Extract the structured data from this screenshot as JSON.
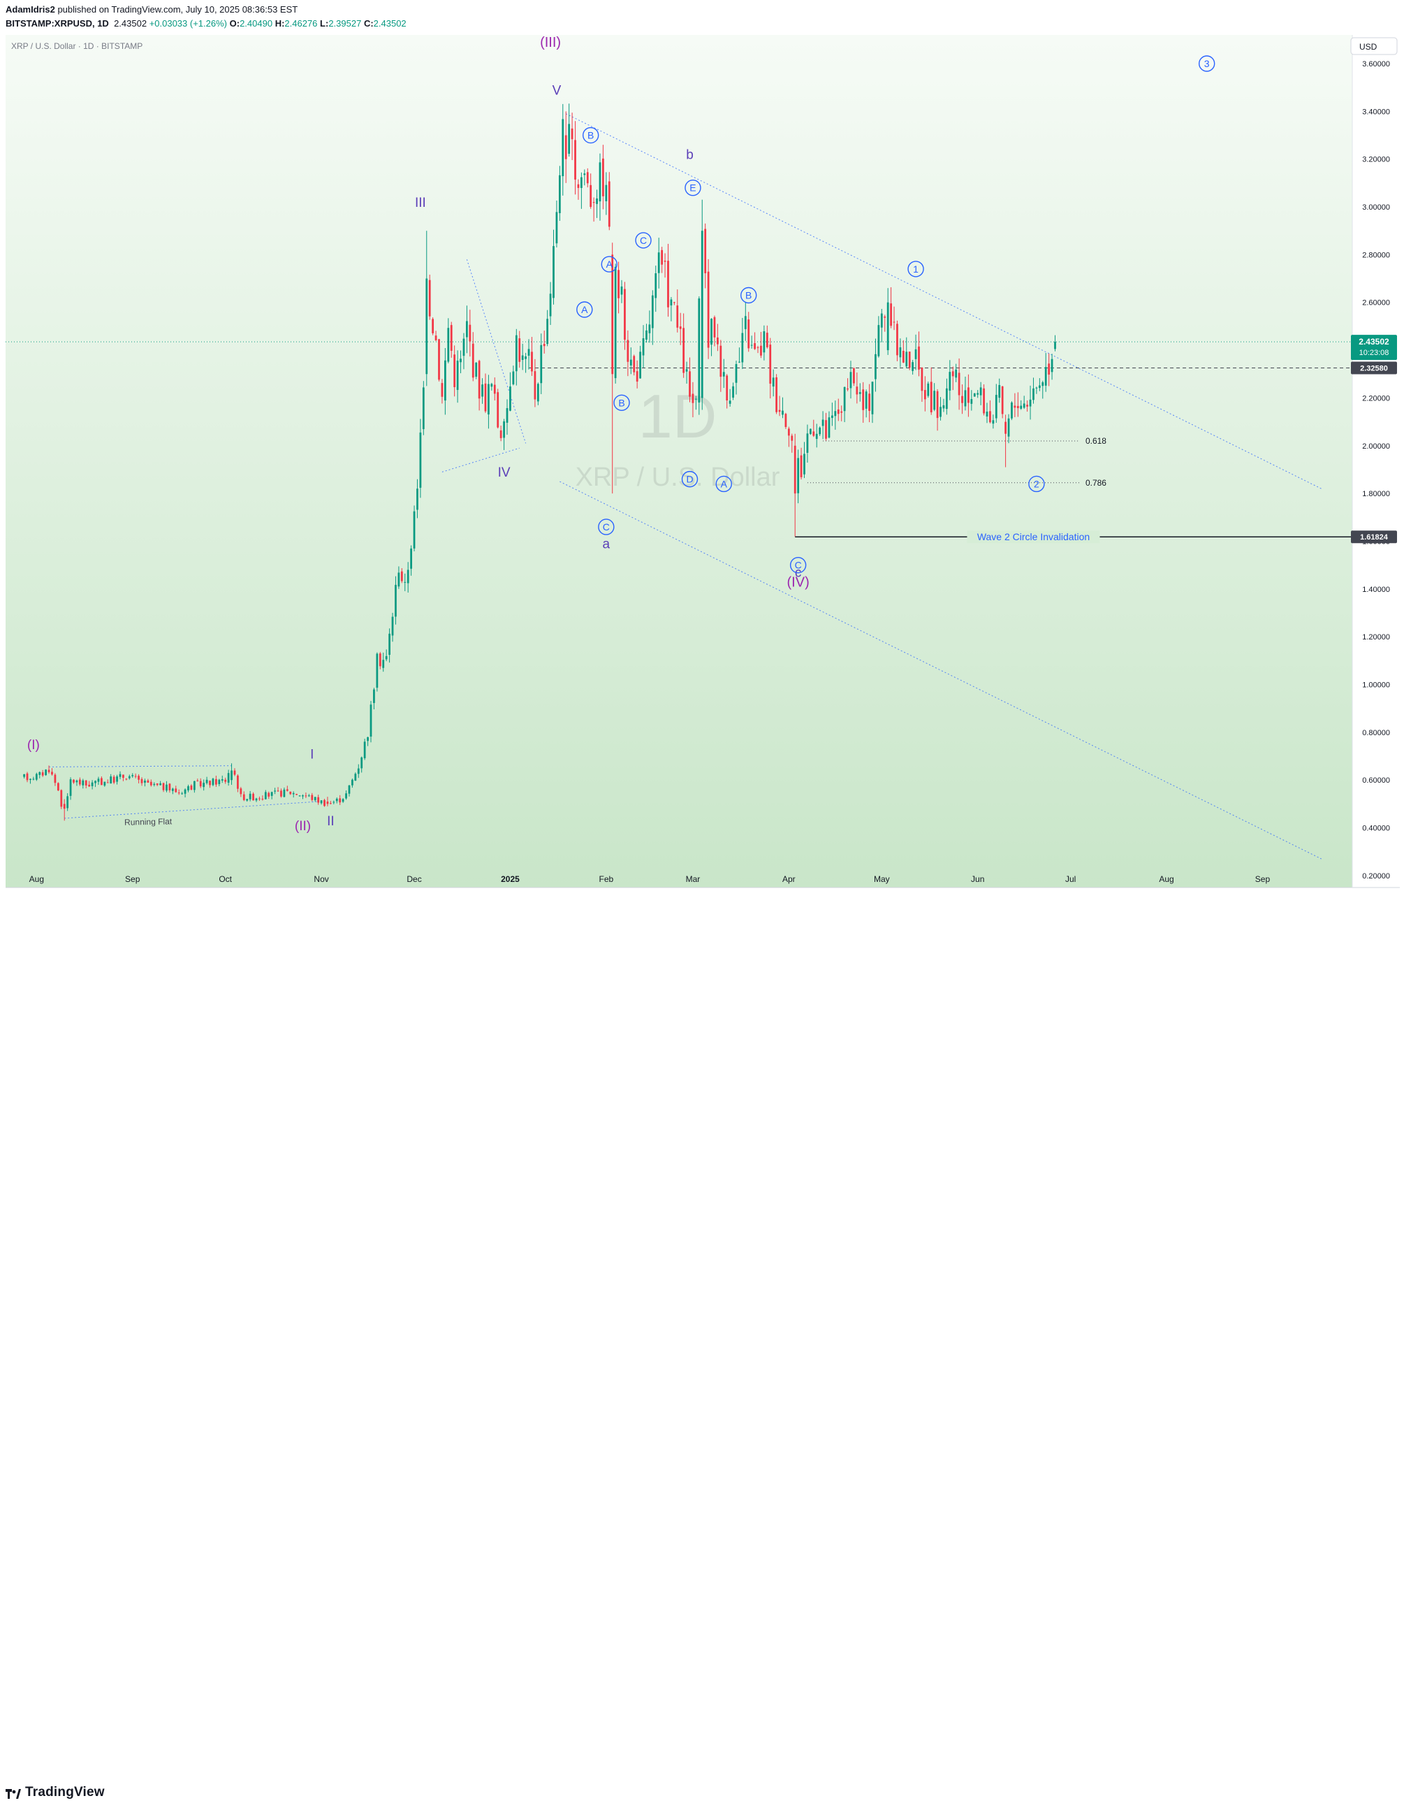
{
  "header": {
    "author": "AdamIdris2",
    "published_text": "published on TradingView.com, July 10, 2025 08:36:53 EST",
    "symbol_line": "BITSTAMP:XRPUSD, 1D",
    "last": "2.43502",
    "change": "+0.03033 (+1.26%)",
    "open_label": "O:",
    "open": "2.40490",
    "high_label": "H:",
    "high": "2.46276",
    "low_label": "L:",
    "low": "2.39527",
    "close_label": "C:",
    "close": "2.43502"
  },
  "chart_data": {
    "type": "candlestick",
    "title": "XRP / U.S. Dollar · 1D · BITSTAMP",
    "watermark_interval": "1D",
    "watermark_name": "XRP / U.S. Dollar",
    "currency": "USD",
    "ylim": [
      0.15,
      3.72
    ],
    "y_ticks": [
      "3.60000",
      "3.40000",
      "3.20000",
      "3.00000",
      "2.80000",
      "2.60000",
      "2.40000",
      "2.20000",
      "2.00000",
      "1.80000",
      "1.60000",
      "1.40000",
      "1.20000",
      "1.00000",
      "0.80000",
      "0.60000",
      "0.40000",
      "0.20000"
    ],
    "x_ticks": [
      {
        "label": "Aug",
        "day": 4
      },
      {
        "label": "Sep",
        "day": 35
      },
      {
        "label": "Oct",
        "day": 65
      },
      {
        "label": "Nov",
        "day": 96
      },
      {
        "label": "Dec",
        "day": 126
      },
      {
        "label": "2025",
        "day": 157
      },
      {
        "label": "Feb",
        "day": 188
      },
      {
        "label": "Mar",
        "day": 216
      },
      {
        "label": "Apr",
        "day": 247
      },
      {
        "label": "May",
        "day": 277
      },
      {
        "label": "Jun",
        "day": 308
      },
      {
        "label": "Jul",
        "day": 338
      },
      {
        "label": "Aug",
        "day": 369
      },
      {
        "label": "Sep",
        "day": 400
      }
    ],
    "x_range_days": [
      -6,
      429
    ],
    "colors": {
      "up": "#089981",
      "down": "#f23645",
      "wave_purple": "#9c27b0",
      "wave_indigo": "#5b3fb8",
      "wave_blue": "#2962ff",
      "trend": "#2962ff"
    },
    "price_path": [
      [
        0,
        0.61
      ],
      [
        5,
        0.62
      ],
      [
        8,
        0.65
      ],
      [
        11,
        0.56
      ],
      [
        13,
        0.44
      ],
      [
        15,
        0.6
      ],
      [
        20,
        0.58
      ],
      [
        28,
        0.6
      ],
      [
        33,
        0.62
      ],
      [
        40,
        0.58
      ],
      [
        45,
        0.57
      ],
      [
        50,
        0.55
      ],
      [
        55,
        0.58
      ],
      [
        60,
        0.59
      ],
      [
        65,
        0.6
      ],
      [
        67,
        0.67
      ],
      [
        70,
        0.53
      ],
      [
        75,
        0.53
      ],
      [
        80,
        0.54
      ],
      [
        85,
        0.55
      ],
      [
        90,
        0.54
      ],
      [
        94,
        0.52
      ],
      [
        98,
        0.5
      ],
      [
        102,
        0.52
      ],
      [
        104,
        0.54
      ],
      [
        106,
        0.6
      ],
      [
        108,
        0.66
      ],
      [
        111,
        0.8
      ],
      [
        114,
        1.1
      ],
      [
        117,
        1.11
      ],
      [
        119,
        1.3
      ],
      [
        121,
        1.5
      ],
      [
        123,
        1.4
      ],
      [
        125,
        1.6
      ],
      [
        127,
        1.8
      ],
      [
        128,
        2.05
      ],
      [
        129,
        2.3
      ],
      [
        131,
        2.6
      ],
      [
        133,
        2.45
      ],
      [
        135,
        2.2
      ],
      [
        137,
        2.5
      ],
      [
        139,
        2.3
      ],
      [
        141,
        2.35
      ],
      [
        143,
        2.5
      ],
      [
        145,
        2.35
      ],
      [
        147,
        2.25
      ],
      [
        149,
        2.2
      ],
      [
        151,
        2.25
      ],
      [
        153,
        2.1
      ],
      [
        155,
        2.05
      ],
      [
        157,
        2.3
      ],
      [
        159,
        2.45
      ],
      [
        161,
        2.35
      ],
      [
        163,
        2.35
      ],
      [
        165,
        2.22
      ],
      [
        167,
        2.4
      ],
      [
        169,
        2.55
      ],
      [
        171,
        2.8
      ],
      [
        173,
        3.2
      ],
      [
        175,
        3.39
      ],
      [
        177,
        3.2
      ],
      [
        179,
        3.12
      ],
      [
        181,
        3.15
      ],
      [
        183,
        3.05
      ],
      [
        185,
        3.1
      ],
      [
        187,
        3.12
      ],
      [
        189,
        2.95
      ],
      [
        191,
        2.7
      ],
      [
        193,
        2.6
      ],
      [
        195,
        2.4
      ],
      [
        197,
        2.3
      ],
      [
        199,
        2.35
      ],
      [
        201,
        2.45
      ],
      [
        203,
        2.6
      ],
      [
        205,
        2.75
      ],
      [
        207,
        2.7
      ],
      [
        209,
        2.6
      ],
      [
        211,
        2.5
      ],
      [
        213,
        2.35
      ],
      [
        215,
        2.2
      ],
      [
        217,
        2.15
      ],
      [
        219,
        2.95
      ],
      [
        221,
        2.45
      ],
      [
        223,
        2.5
      ],
      [
        225,
        2.35
      ],
      [
        227,
        2.2
      ],
      [
        229,
        2.3
      ],
      [
        231,
        2.35
      ],
      [
        233,
        2.5
      ],
      [
        235,
        2.4
      ],
      [
        237,
        2.38
      ],
      [
        239,
        2.45
      ],
      [
        241,
        2.3
      ],
      [
        243,
        2.2
      ],
      [
        245,
        2.15
      ],
      [
        247,
        2.1
      ],
      [
        249,
        1.95
      ],
      [
        251,
        1.9
      ],
      [
        253,
        2.05
      ],
      [
        255,
        2.1
      ],
      [
        257,
        2.08
      ],
      [
        259,
        2.05
      ],
      [
        261,
        2.1
      ],
      [
        263,
        2.15
      ],
      [
        265,
        2.2
      ],
      [
        267,
        2.25
      ],
      [
        269,
        2.25
      ],
      [
        271,
        2.15
      ],
      [
        273,
        2.2
      ],
      [
        275,
        2.4
      ],
      [
        277,
        2.55
      ],
      [
        279,
        2.6
      ],
      [
        281,
        2.45
      ],
      [
        283,
        2.4
      ],
      [
        285,
        2.35
      ],
      [
        287,
        2.4
      ],
      [
        289,
        2.3
      ],
      [
        291,
        2.25
      ],
      [
        293,
        2.2
      ],
      [
        295,
        2.15
      ],
      [
        297,
        2.2
      ],
      [
        299,
        2.25
      ],
      [
        301,
        2.3
      ],
      [
        303,
        2.15
      ],
      [
        305,
        2.2
      ],
      [
        307,
        2.25
      ],
      [
        309,
        2.2
      ],
      [
        311,
        2.15
      ],
      [
        313,
        2.12
      ],
      [
        315,
        2.2
      ],
      [
        317,
        2.05
      ],
      [
        319,
        2.15
      ],
      [
        321,
        2.2
      ],
      [
        323,
        2.18
      ],
      [
        325,
        2.22
      ],
      [
        327,
        2.25
      ],
      [
        329,
        2.3
      ],
      [
        331,
        2.35
      ],
      [
        332,
        2.4
      ],
      [
        333,
        2.44
      ]
    ],
    "fixed_candles": [
      {
        "d": 13,
        "o": 0.5,
        "h": 0.52,
        "l": 0.43,
        "c": 0.48
      },
      {
        "d": 67,
        "o": 0.6,
        "h": 0.67,
        "l": 0.58,
        "c": 0.64
      },
      {
        "d": 98,
        "o": 0.51,
        "h": 0.53,
        "l": 0.49,
        "c": 0.5
      },
      {
        "d": 130,
        "o": 2.3,
        "h": 2.9,
        "l": 2.25,
        "c": 2.7
      },
      {
        "d": 175,
        "o": 3.3,
        "h": 3.4,
        "l": 3.1,
        "c": 3.2
      },
      {
        "d": 190,
        "o": 2.8,
        "h": 2.85,
        "l": 1.8,
        "c": 2.3
      },
      {
        "d": 219,
        "o": 2.2,
        "h": 3.03,
        "l": 2.15,
        "c": 2.9
      },
      {
        "d": 249,
        "o": 2.0,
        "h": 2.05,
        "l": 1.62,
        "c": 1.8
      },
      {
        "d": 279,
        "o": 2.4,
        "h": 2.66,
        "l": 2.38,
        "c": 2.6
      },
      {
        "d": 317,
        "o": 2.1,
        "h": 2.13,
        "l": 1.91,
        "c": 2.05
      },
      {
        "d": 333,
        "o": 2.4049,
        "h": 2.46276,
        "l": 2.39527,
        "c": 2.43502
      }
    ],
    "annotations": [
      {
        "text": "(I)",
        "day": 3,
        "price": 0.73,
        "style": "wave_purple",
        "size": 19
      },
      {
        "text": "(II)",
        "day": 90,
        "price": 0.39,
        "style": "wave_purple",
        "size": 19
      },
      {
        "text": "I",
        "day": 93,
        "price": 0.69,
        "style": "wave_indigo",
        "size": 19
      },
      {
        "text": "II",
        "day": 99,
        "price": 0.41,
        "style": "wave_indigo",
        "size": 19
      },
      {
        "text": "III",
        "day": 128,
        "price": 3.0,
        "style": "wave_indigo",
        "size": 19
      },
      {
        "text": "IV",
        "day": 155,
        "price": 1.87,
        "style": "wave_indigo",
        "size": 19
      },
      {
        "text": "V",
        "day": 172,
        "price": 3.47,
        "style": "wave_indigo",
        "size": 19
      },
      {
        "text": "(III)",
        "day": 170,
        "price": 3.67,
        "style": "wave_purple",
        "size": 20
      },
      {
        "text": "a",
        "day": 188,
        "price": 1.57,
        "style": "wave_indigo",
        "size": 19
      },
      {
        "text": "b",
        "day": 215,
        "price": 3.2,
        "style": "wave_indigo",
        "size": 19
      },
      {
        "text": "c",
        "day": 250,
        "price": 1.45,
        "style": "wave_indigo",
        "size": 19
      },
      {
        "text": "(IV)",
        "day": 250,
        "price": 1.41,
        "style": "wave_purple",
        "size": 20
      }
    ],
    "circled_labels": [
      {
        "text": "B",
        "day": 183,
        "price": 3.3
      },
      {
        "text": "A",
        "day": 181,
        "price": 2.57
      },
      {
        "text": "A",
        "day": 189,
        "price": 2.76
      },
      {
        "text": "B",
        "day": 193,
        "price": 2.18
      },
      {
        "text": "C",
        "day": 188,
        "price": 1.66
      },
      {
        "text": "C",
        "day": 200,
        "price": 2.86
      },
      {
        "text": "E",
        "day": 216,
        "price": 3.08
      },
      {
        "text": "D",
        "day": 215,
        "price": 1.86
      },
      {
        "text": "A",
        "day": 226,
        "price": 1.84
      },
      {
        "text": "B",
        "day": 234,
        "price": 2.63
      },
      {
        "text": "C",
        "day": 250,
        "price": 1.5
      },
      {
        "text": "1",
        "day": 288,
        "price": 2.74
      },
      {
        "text": "2",
        "day": 327,
        "price": 1.84
      },
      {
        "text": "3",
        "day": 382,
        "price": 3.6
      }
    ],
    "trend_lines": [
      {
        "from": [
          175,
          3.39
        ],
        "to": [
          419,
          1.82
        ],
        "style": "dotted"
      },
      {
        "from": [
          173,
          1.85
        ],
        "to": [
          419,
          0.27
        ],
        "style": "dotted"
      },
      {
        "from": [
          143,
          2.78
        ],
        "to": [
          162,
          2.01
        ],
        "style": "dotted"
      },
      {
        "from": [
          135,
          1.89
        ],
        "to": [
          160,
          1.99
        ],
        "style": "dotted"
      },
      {
        "from": [
          13,
          0.44
        ],
        "to": [
          95,
          0.51
        ],
        "style": "dotted"
      },
      {
        "from": [
          8,
          0.655
        ],
        "to": [
          67,
          0.66
        ],
        "style": "dotted"
      }
    ],
    "running_flat_label": "Running Flat",
    "levels": [
      {
        "price": 2.3258,
        "label": "2.32580",
        "style": "dashed",
        "from_day": 163,
        "tag_color": "#434651"
      },
      {
        "price": 2.02,
        "label": "0.618",
        "style": "dotted",
        "from_day": 258,
        "to_day": 341
      },
      {
        "price": 1.845,
        "label": "0.786",
        "style": "dotted",
        "from_day": 253,
        "to_day": 341
      },
      {
        "price": 1.61824,
        "label": "1.61824",
        "style": "solid",
        "from_day": 249,
        "text": "Wave 2 Circle Invalidation",
        "tag_color": "#434651"
      }
    ],
    "last_price": {
      "price": 2.43502,
      "label": "2.43502",
      "countdown": "10:23:08",
      "color": "#089981"
    }
  },
  "footer": {
    "brand": "TradingView"
  }
}
